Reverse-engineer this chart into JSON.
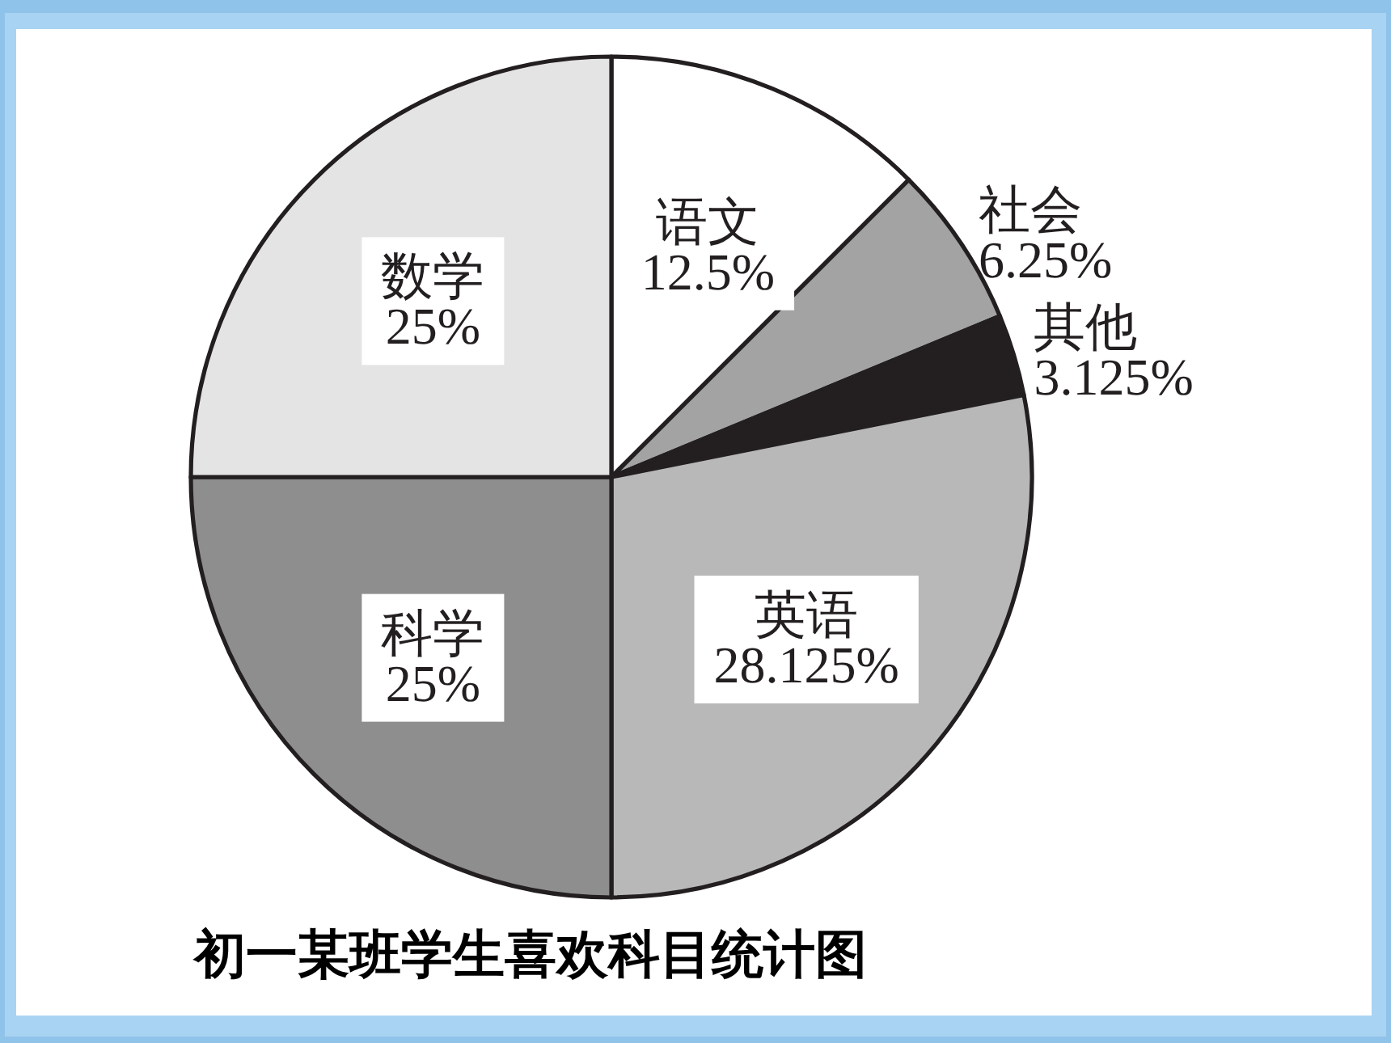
{
  "chart_data": {
    "type": "pie",
    "title": "初一某班学生喜欢科目统计图",
    "categories": [
      "语文",
      "社会",
      "其他",
      "英语",
      "科学",
      "数学"
    ],
    "values": [
      12.5,
      6.25,
      3.125,
      28.125,
      25,
      25
    ],
    "value_labels": [
      "12.5%",
      "6.25%",
      "3.125%",
      "28.125%",
      "25%",
      "25%"
    ],
    "colors": [
      "#ffffff",
      "#a3a3a3",
      "#231f20",
      "#b8b8b8",
      "#8e8e8e",
      "#e4e4e4"
    ]
  }
}
